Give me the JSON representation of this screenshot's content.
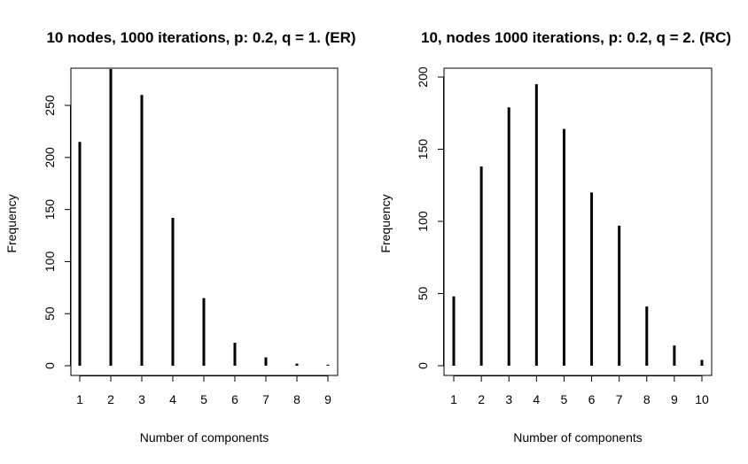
{
  "chart_data": [
    {
      "type": "bar",
      "title": "10 nodes, 1000 iterations, p: 0.2, q = 1. (ER)",
      "xlabel": "Number of components",
      "ylabel": "Frequency",
      "categories": [
        "1",
        "2",
        "3",
        "4",
        "5",
        "6",
        "7",
        "8",
        "9"
      ],
      "values": [
        215,
        285,
        260,
        142,
        65,
        22,
        8,
        2,
        1
      ],
      "yticks": [
        "0",
        "50",
        "100",
        "150",
        "200",
        "250"
      ],
      "ylim": [
        0,
        290
      ],
      "grid": false
    },
    {
      "type": "bar",
      "title": "10, nodes 1000 iterations, p: 0.2, q = 2. (RC)",
      "xlabel": "Number of components",
      "ylabel": "Frequency",
      "categories": [
        "1",
        "2",
        "3",
        "4",
        "5",
        "6",
        "7",
        "8",
        "9",
        "10"
      ],
      "values": [
        48,
        138,
        179,
        195,
        164,
        120,
        97,
        41,
        14,
        4
      ],
      "yticks": [
        "0",
        "50",
        "100",
        "150",
        "200"
      ],
      "ylim": [
        0,
        200
      ],
      "grid": false
    }
  ]
}
